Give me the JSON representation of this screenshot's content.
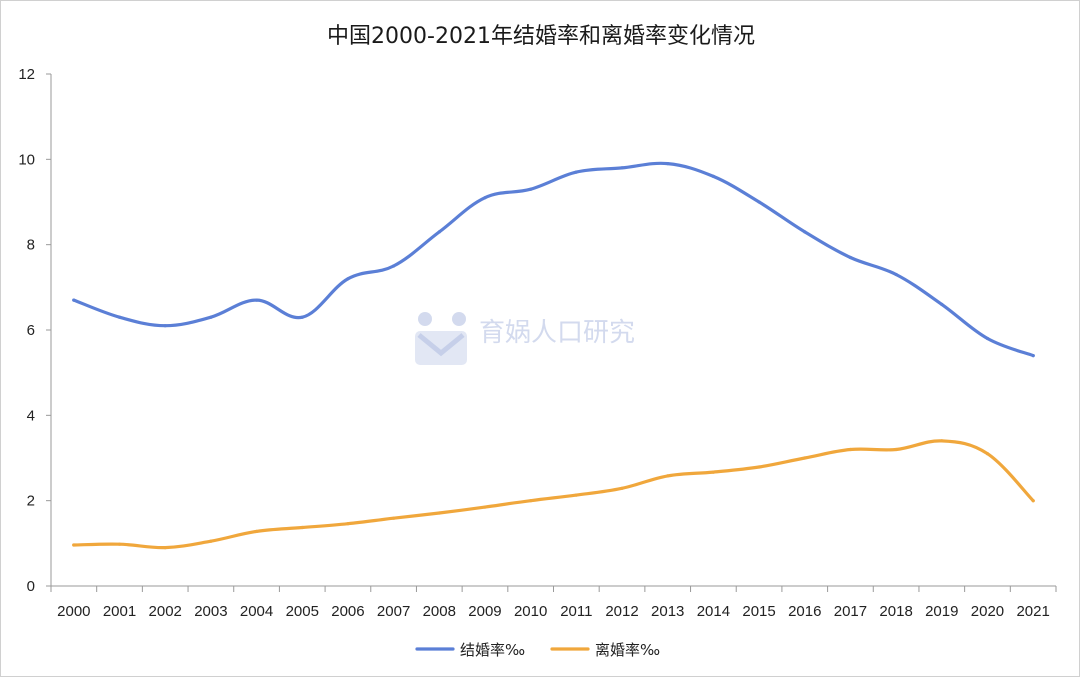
{
  "chart_data": {
    "type": "line",
    "title": "中国2000-2021年结婚率和离婚率变化情况",
    "categories": [
      "2000",
      "2001",
      "2002",
      "2003",
      "2004",
      "2005",
      "2006",
      "2007",
      "2008",
      "2009",
      "2010",
      "2011",
      "2012",
      "2013",
      "2014",
      "2015",
      "2016",
      "2017",
      "2018",
      "2019",
      "2020",
      "2021"
    ],
    "series": [
      {
        "name": "结婚率‰",
        "color": "#5b7fd6",
        "values": [
          6.7,
          6.3,
          6.1,
          6.3,
          6.7,
          6.3,
          7.2,
          7.5,
          8.3,
          9.1,
          9.3,
          9.7,
          9.8,
          9.9,
          9.6,
          9.0,
          8.3,
          7.7,
          7.3,
          6.6,
          5.8,
          5.4
        ]
      },
      {
        "name": "离婚率‰",
        "color": "#f0a73c",
        "values": [
          0.96,
          0.98,
          0.9,
          1.05,
          1.28,
          1.37,
          1.46,
          1.59,
          1.71,
          1.85,
          2.0,
          2.13,
          2.29,
          2.58,
          2.67,
          2.79,
          3.0,
          3.2,
          3.2,
          3.4,
          3.1,
          2.0
        ]
      }
    ],
    "y_ticks": [
      "0",
      "2",
      "4",
      "6",
      "8",
      "10",
      "12"
    ],
    "ylim": [
      0,
      12
    ],
    "legend_position": "bottom",
    "grid": false
  },
  "watermark": {
    "text": "育娲人口研究",
    "icon": "people-logo-icon"
  }
}
